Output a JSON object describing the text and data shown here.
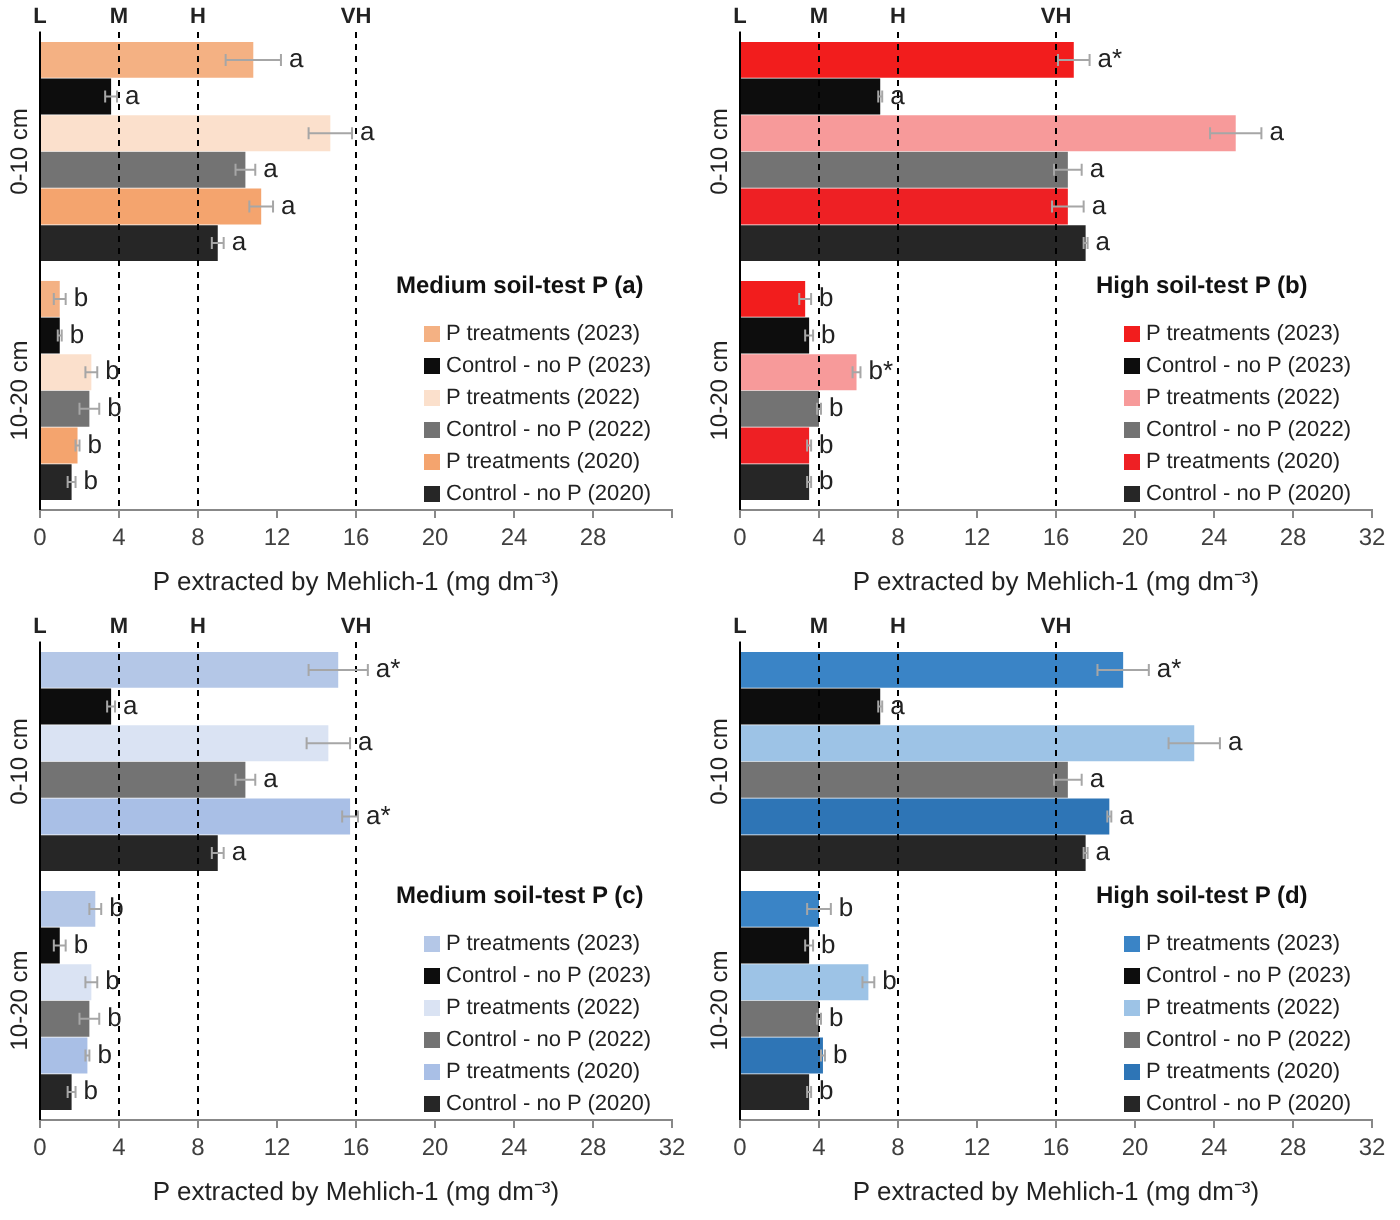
{
  "chart_data": [
    {
      "type": "bar",
      "orientation": "horizontal",
      "legend_title": "Medium soil-test P (a)",
      "xlabel": "P extracted by Mehlich-1 (mg dm⁻³)",
      "categories": [
        "0-10 cm",
        "10-20 cm"
      ],
      "xlim": [
        0,
        32
      ],
      "xticks": [
        0,
        4,
        8,
        12,
        16,
        20,
        24,
        28,
        {
          "value": 32,
          "label": null
        }
      ],
      "grid": false,
      "legend": "bottom right",
      "ref_lines": [
        {
          "axis": "x",
          "value": 0,
          "label": "L"
        },
        {
          "axis": "x",
          "value": 4,
          "label": "M",
          "line_style": "dashed"
        },
        {
          "axis": "x",
          "value": 8,
          "label": "H",
          "line_style": "dashed"
        },
        {
          "axis": "x",
          "value": 16,
          "label": "VH",
          "line_style": "dashed"
        }
      ],
      "series": [
        {
          "name": "P treatments (2023)",
          "color": "#f4b183",
          "values": [
            10.8,
            1.0
          ],
          "errors": [
            1.4,
            0.3
          ],
          "value_labels": [
            "a",
            "b"
          ]
        },
        {
          "name": "Control - no P (2023)",
          "color": "#0d0d0d",
          "values": [
            3.6,
            1.0
          ],
          "errors": [
            0.3,
            0.1
          ],
          "value_labels": [
            "a",
            "b"
          ]
        },
        {
          "name": "P treatments (2022)",
          "color": "#fbe0cc",
          "values": [
            14.7,
            2.6
          ],
          "errors": [
            1.1,
            0.3
          ],
          "value_labels": [
            "a",
            "b"
          ]
        },
        {
          "name": "Control - no P (2022)",
          "color": "#737373",
          "values": [
            10.4,
            2.5
          ],
          "errors": [
            0.5,
            0.5
          ],
          "value_labels": [
            "a",
            "b"
          ]
        },
        {
          "name": "P treatments (2020)",
          "color": "#f4a46e",
          "values": [
            11.2,
            1.9
          ],
          "errors": [
            0.6,
            0.1
          ],
          "value_labels": [
            "a",
            "b"
          ]
        },
        {
          "name": "Control - no P (2020)",
          "color": "#262626",
          "values": [
            9.0,
            1.6
          ],
          "errors": [
            0.3,
            0.2
          ],
          "value_labels": [
            "a",
            "b"
          ]
        }
      ]
    },
    {
      "type": "bar",
      "orientation": "horizontal",
      "legend_title": "High soil-test P (b)",
      "xlabel": "P extracted by Mehlich-1 (mg dm⁻³)",
      "categories": [
        "0-10 cm",
        "10-20 cm"
      ],
      "xlim": [
        0,
        32
      ],
      "xticks": [
        0,
        4,
        8,
        12,
        16,
        20,
        24,
        28,
        32
      ],
      "grid": false,
      "legend": "bottom right",
      "ref_lines": [
        {
          "axis": "x",
          "value": 0,
          "label": "L"
        },
        {
          "axis": "x",
          "value": 4,
          "label": "M",
          "line_style": "dashed"
        },
        {
          "axis": "x",
          "value": 8,
          "label": "H",
          "line_style": "dashed"
        },
        {
          "axis": "x",
          "value": 16,
          "label": "VH",
          "line_style": "dashed"
        }
      ],
      "series": [
        {
          "name": "P treatments (2023)",
          "color": "#f21d1d",
          "values": [
            16.9,
            3.3
          ],
          "errors": [
            0.8,
            0.3
          ],
          "value_labels": [
            "a*",
            "b"
          ]
        },
        {
          "name": "Control - no P (2023)",
          "color": "#0d0d0d",
          "values": [
            7.1,
            3.5
          ],
          "errors": [
            0.1,
            0.2
          ],
          "value_labels": [
            "a",
            "b"
          ]
        },
        {
          "name": "P treatments (2022)",
          "color": "#f79a9a",
          "values": [
            25.1,
            5.9
          ],
          "errors": [
            1.3,
            0.2
          ],
          "value_labels": [
            "a",
            "b*"
          ]
        },
        {
          "name": "Control - no P (2022)",
          "color": "#737373",
          "values": [
            16.6,
            4.0
          ],
          "errors": [
            0.7,
            0.1
          ],
          "value_labels": [
            "a",
            "b"
          ]
        },
        {
          "name": "P treatments (2020)",
          "color": "#ee2024",
          "values": [
            16.6,
            3.5
          ],
          "errors": [
            0.8,
            0.1
          ],
          "value_labels": [
            "a",
            "b"
          ]
        },
        {
          "name": "Control - no P (2020)",
          "color": "#262626",
          "values": [
            17.5,
            3.5
          ],
          "errors": [
            0.1,
            0.1
          ],
          "value_labels": [
            "a",
            "b"
          ]
        }
      ]
    },
    {
      "type": "bar",
      "orientation": "horizontal",
      "legend_title": "Medium soil-test P (c)",
      "xlabel": "P extracted by Mehlich-1 (mg dm⁻³)",
      "categories": [
        "0-10 cm",
        "10-20 cm"
      ],
      "xlim": [
        0,
        32
      ],
      "xticks": [
        0,
        4,
        8,
        12,
        16,
        20,
        24,
        28,
        32
      ],
      "grid": false,
      "legend": "bottom right",
      "ref_lines": [
        {
          "axis": "x",
          "value": 0,
          "label": "L"
        },
        {
          "axis": "x",
          "value": 4,
          "label": "M",
          "line_style": "dashed"
        },
        {
          "axis": "x",
          "value": 8,
          "label": "H",
          "line_style": "dashed"
        },
        {
          "axis": "x",
          "value": 16,
          "label": "VH",
          "line_style": "dashed"
        }
      ],
      "series": [
        {
          "name": "P treatments (2023)",
          "color": "#b4c7e7",
          "values": [
            15.1,
            2.8
          ],
          "errors": [
            1.5,
            0.3
          ],
          "value_labels": [
            "a*",
            "b"
          ]
        },
        {
          "name": "Control - no P (2023)",
          "color": "#0d0d0d",
          "values": [
            3.6,
            1.0
          ],
          "errors": [
            0.2,
            0.3
          ],
          "value_labels": [
            "a",
            "b"
          ]
        },
        {
          "name": "P treatments (2022)",
          "color": "#dae3f3",
          "values": [
            14.6,
            2.6
          ],
          "errors": [
            1.1,
            0.3
          ],
          "value_labels": [
            "a",
            "b"
          ]
        },
        {
          "name": "Control - no P (2022)",
          "color": "#737373",
          "values": [
            10.4,
            2.5
          ],
          "errors": [
            0.5,
            0.5
          ],
          "value_labels": [
            "a",
            "b"
          ]
        },
        {
          "name": "P treatments (2020)",
          "color": "#a9bfe6",
          "values": [
            15.7,
            2.4
          ],
          "errors": [
            0.4,
            0.1
          ],
          "value_labels": [
            "a*",
            "b"
          ]
        },
        {
          "name": "Control - no P (2020)",
          "color": "#262626",
          "values": [
            9.0,
            1.6
          ],
          "errors": [
            0.3,
            0.2
          ],
          "value_labels": [
            "a",
            "b"
          ]
        }
      ]
    },
    {
      "type": "bar",
      "orientation": "horizontal",
      "legend_title": "High soil-test P (d)",
      "xlabel": "P extracted by Mehlich-1 (mg dm⁻³)",
      "categories": [
        "0-10 cm",
        "10-20 cm"
      ],
      "xlim": [
        0,
        32
      ],
      "xticks": [
        0,
        4,
        8,
        12,
        16,
        20,
        24,
        28,
        32
      ],
      "grid": false,
      "legend": "bottom right",
      "ref_lines": [
        {
          "axis": "x",
          "value": 0,
          "label": "L"
        },
        {
          "axis": "x",
          "value": 4,
          "label": "M",
          "line_style": "dashed"
        },
        {
          "axis": "x",
          "value": 8,
          "label": "H",
          "line_style": "dashed"
        },
        {
          "axis": "x",
          "value": 16,
          "label": "VH",
          "line_style": "dashed"
        }
      ],
      "series": [
        {
          "name": "P treatments (2023)",
          "color": "#3a84c6",
          "values": [
            19.4,
            4.0
          ],
          "errors": [
            1.3,
            0.6
          ],
          "value_labels": [
            "a*",
            "b"
          ]
        },
        {
          "name": "Control - no P (2023)",
          "color": "#0d0d0d",
          "values": [
            7.1,
            3.5
          ],
          "errors": [
            0.1,
            0.2
          ],
          "value_labels": [
            "a",
            "b"
          ]
        },
        {
          "name": "P treatments (2022)",
          "color": "#9dc3e6",
          "values": [
            23.0,
            6.5
          ],
          "errors": [
            1.3,
            0.3
          ],
          "value_labels": [
            "a",
            "b"
          ]
        },
        {
          "name": "Control - no P (2022)",
          "color": "#737373",
          "values": [
            16.6,
            4.0
          ],
          "errors": [
            0.7,
            0.1
          ],
          "value_labels": [
            "a",
            "b"
          ]
        },
        {
          "name": "P treatments (2020)",
          "color": "#2e75b6",
          "values": [
            18.7,
            4.2
          ],
          "errors": [
            0.1,
            0.1
          ],
          "value_labels": [
            "a",
            "b"
          ]
        },
        {
          "name": "Control - no P (2020)",
          "color": "#262626",
          "values": [
            17.5,
            3.5
          ],
          "errors": [
            0.1,
            0.1
          ],
          "value_labels": [
            "a",
            "b"
          ]
        }
      ]
    }
  ]
}
